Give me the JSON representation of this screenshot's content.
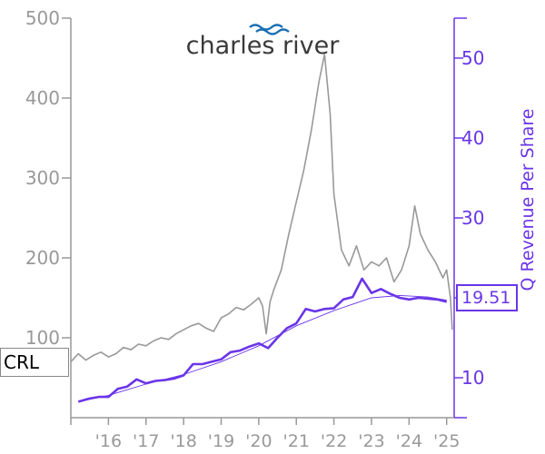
{
  "logo": {
    "text": "charles river"
  },
  "ticker": "CRL",
  "latest_value_label": "19.51",
  "colors": {
    "price": "#999999",
    "revenue": "#6a35e8",
    "trend": "#6a35e8"
  },
  "chart_data": {
    "type": "line",
    "title": "",
    "left_axis": {
      "ylim": [
        0,
        500
      ],
      "ticks": [
        100,
        200,
        300,
        400,
        500
      ],
      "tick_labels": [
        "100",
        "200",
        "300",
        "400",
        "500"
      ]
    },
    "right_axis": {
      "label": "Q Revenue Per Share",
      "ylim": [
        5,
        55
      ],
      "ticks": [
        10,
        20,
        30,
        40,
        50
      ],
      "tick_labels": [
        "10",
        "20",
        "30",
        "40",
        "50"
      ]
    },
    "x_axis": {
      "xlim": [
        2015.0,
        2025.2
      ],
      "ticks": [
        2016,
        2017,
        2018,
        2019,
        2020,
        2021,
        2022,
        2023,
        2024,
        2025
      ],
      "tick_labels": [
        "'16",
        "'17",
        "'18",
        "'19",
        "'20",
        "'21",
        "'22",
        "'23",
        "'24",
        "'25"
      ]
    },
    "series": [
      {
        "axis": "left",
        "x": [
          2015.0,
          2015.2,
          2015.4,
          2015.6,
          2015.8,
          2016.0,
          2016.2,
          2016.4,
          2016.6,
          2016.8,
          2017.0,
          2017.2,
          2017.4,
          2017.6,
          2017.8,
          2018.0,
          2018.2,
          2018.4,
          2018.6,
          2018.8,
          2019.0,
          2019.2,
          2019.4,
          2019.6,
          2019.8,
          2020.0,
          2020.1,
          2020.2,
          2020.3,
          2020.4,
          2020.6,
          2020.8,
          2021.0,
          2021.2,
          2021.4,
          2021.6,
          2021.75,
          2021.9,
          2022.0,
          2022.2,
          2022.4,
          2022.6,
          2022.8,
          2023.0,
          2023.2,
          2023.4,
          2023.6,
          2023.8,
          2024.0,
          2024.15,
          2024.3,
          2024.5,
          2024.7,
          2024.9,
          2025.0,
          2025.1,
          2025.15
        ],
        "y": [
          70,
          80,
          72,
          78,
          82,
          76,
          80,
          88,
          85,
          92,
          90,
          96,
          100,
          98,
          105,
          110,
          115,
          118,
          112,
          108,
          125,
          130,
          138,
          135,
          142,
          150,
          140,
          105,
          145,
          160,
          185,
          230,
          270,
          310,
          360,
          420,
          455,
          380,
          280,
          210,
          190,
          215,
          185,
          195,
          190,
          200,
          170,
          185,
          215,
          265,
          230,
          210,
          195,
          175,
          185,
          150,
          110
        ]
      },
      {
        "axis": "right",
        "x": [
          2015.2,
          2015.5,
          2015.75,
          2016.0,
          2016.25,
          2016.5,
          2016.75,
          2017.0,
          2017.25,
          2017.5,
          2017.75,
          2018.0,
          2018.25,
          2018.5,
          2018.75,
          2019.0,
          2019.25,
          2019.5,
          2019.75,
          2020.0,
          2020.25,
          2020.5,
          2020.75,
          2021.0,
          2021.25,
          2021.5,
          2021.75,
          2022.0,
          2022.25,
          2022.5,
          2022.75,
          2023.0,
          2023.25,
          2023.5,
          2023.75,
          2024.0,
          2024.25,
          2024.5,
          2024.75,
          2025.0
        ],
        "y": [
          7.0,
          7.4,
          7.6,
          7.6,
          8.6,
          8.9,
          9.8,
          9.3,
          9.6,
          9.7,
          9.9,
          10.3,
          11.7,
          11.7,
          12.0,
          12.3,
          13.2,
          13.4,
          13.9,
          14.3,
          13.7,
          15.0,
          16.2,
          16.8,
          18.6,
          18.3,
          18.6,
          18.7,
          19.8,
          20.1,
          22.4,
          20.6,
          21.1,
          20.5,
          20.0,
          19.8,
          20.0,
          19.9,
          19.8,
          19.5
        ]
      },
      {
        "axis": "right",
        "x": [
          2015.2,
          2016.0,
          2017.0,
          2018.0,
          2019.0,
          2020.0,
          2021.0,
          2022.0,
          2023.0,
          2023.75,
          2024.5,
          2025.0
        ],
        "y": [
          7.0,
          7.8,
          9.2,
          10.4,
          12.0,
          14.0,
          16.5,
          18.4,
          20.0,
          20.3,
          20.1,
          19.7
        ]
      }
    ]
  }
}
